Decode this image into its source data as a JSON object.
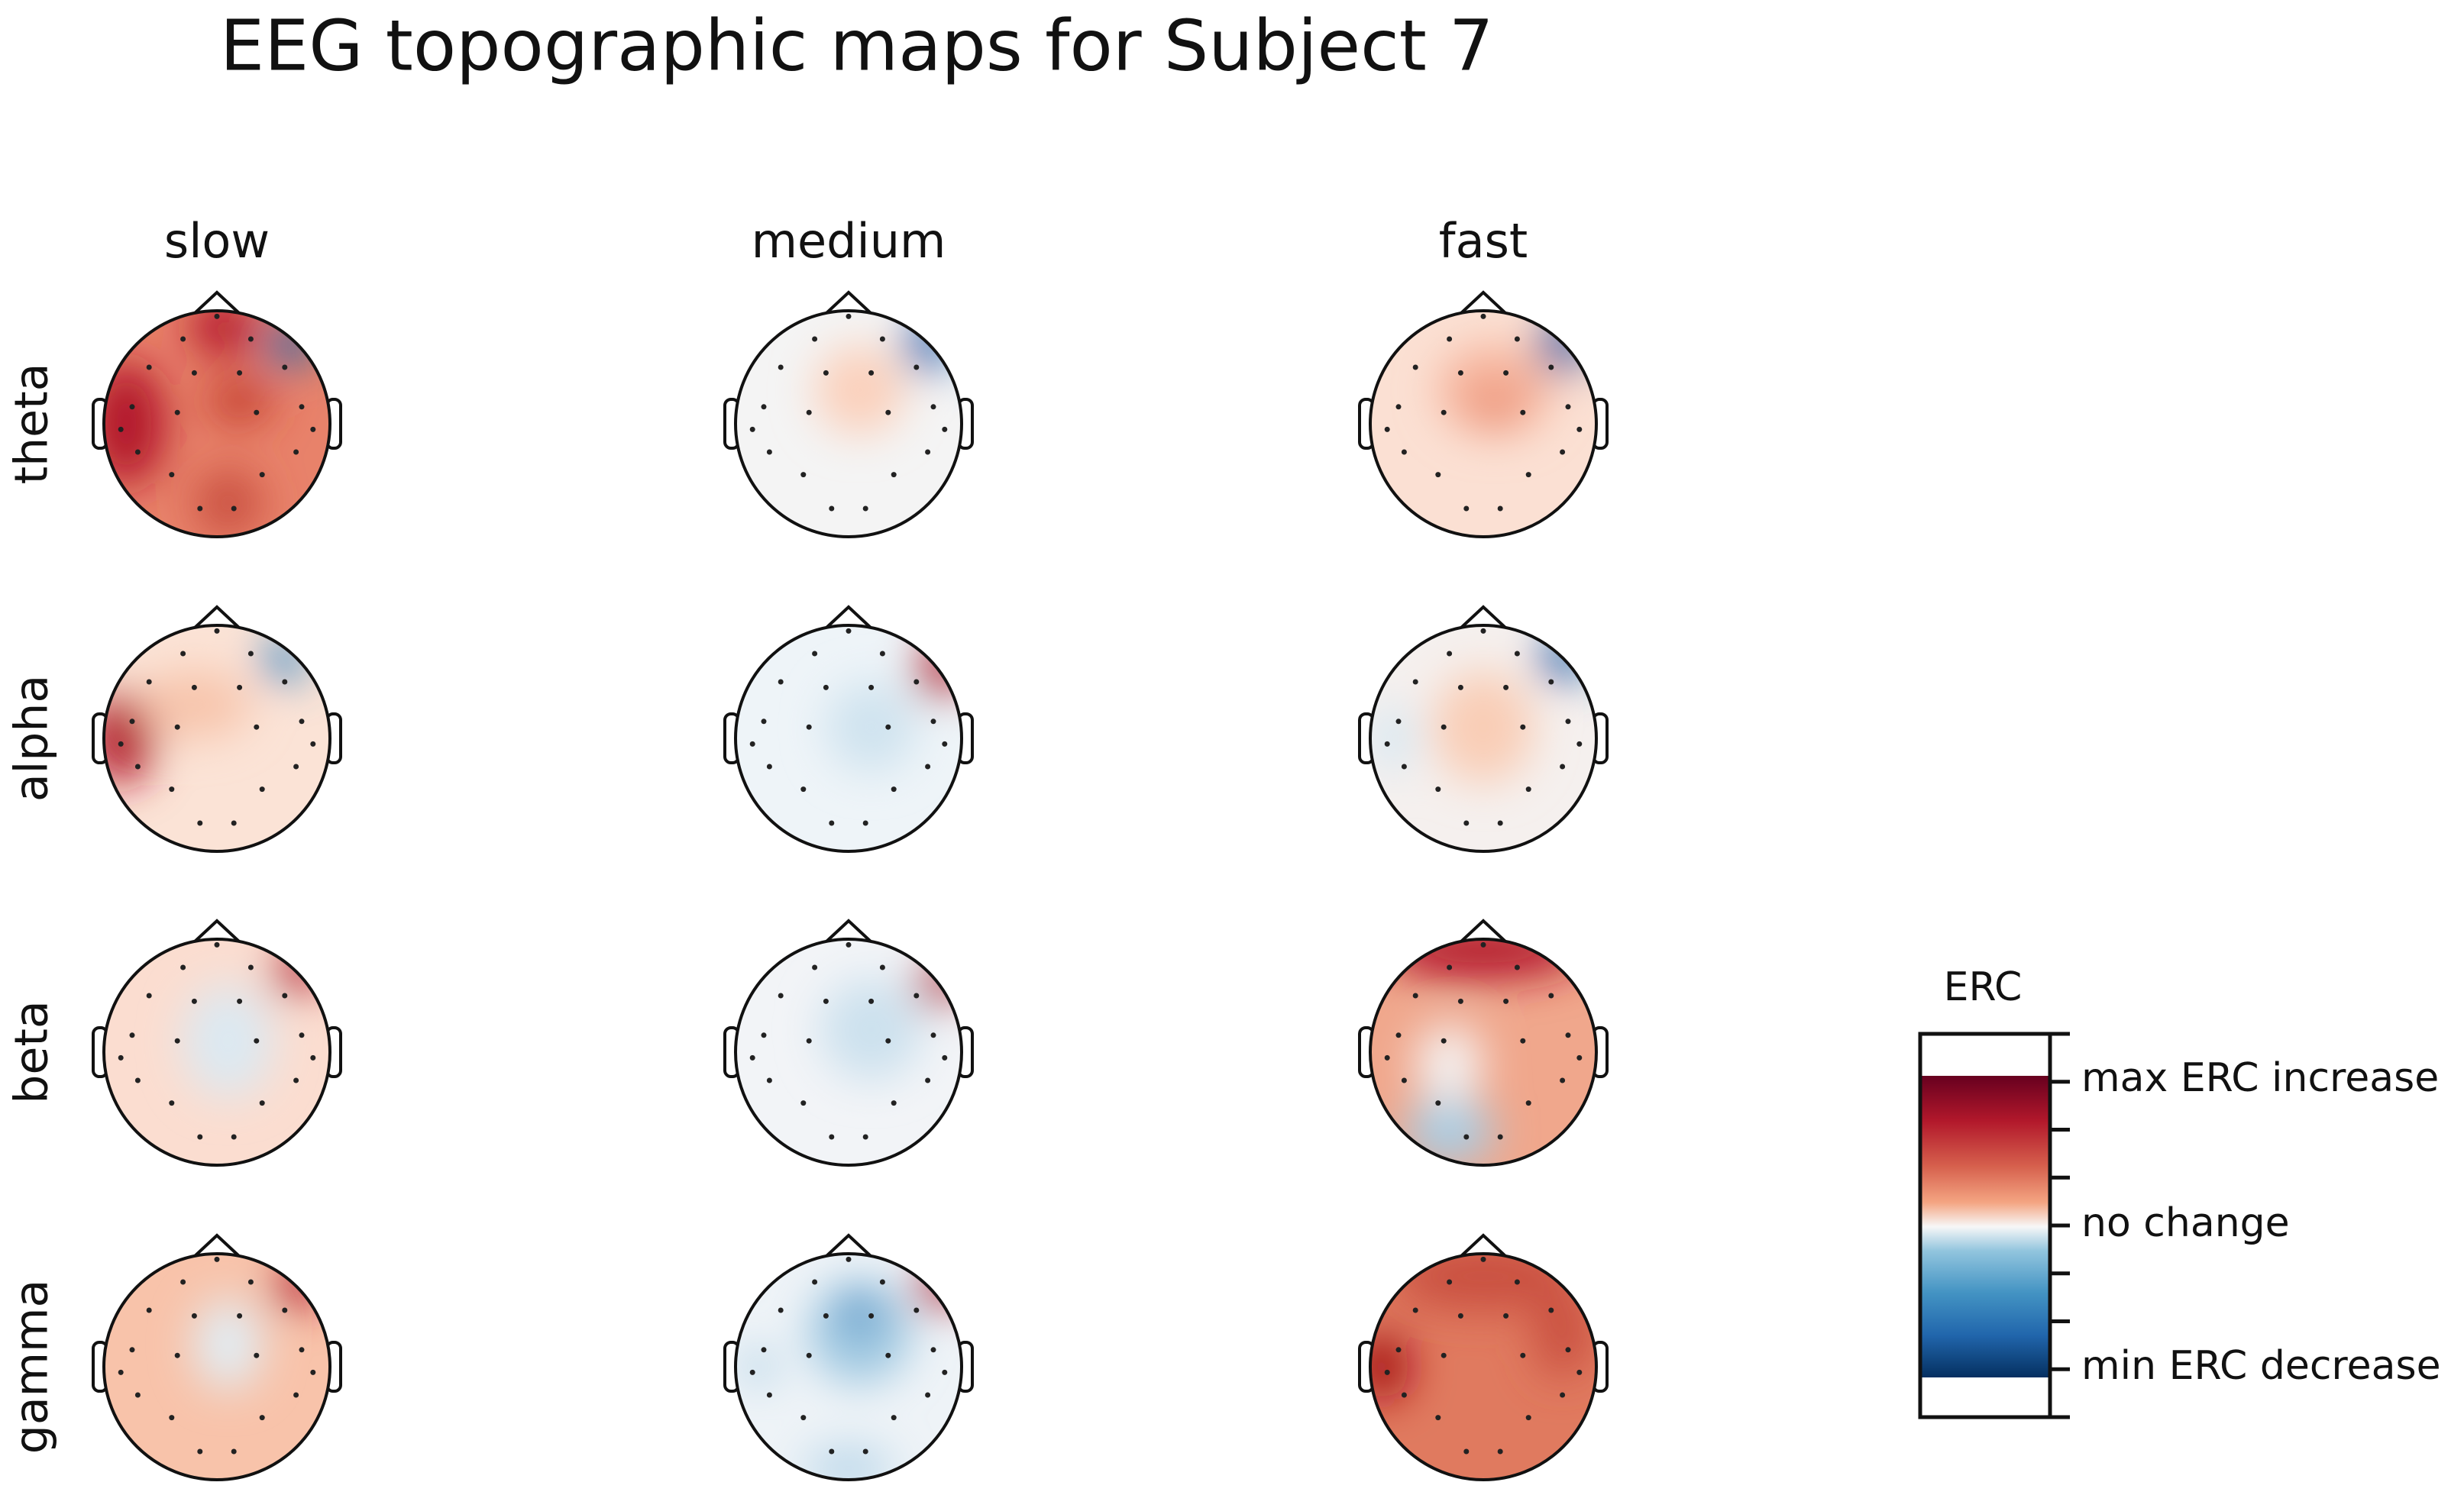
{
  "title": "EEG topographic maps for Subject 7",
  "columns": [
    "slow",
    "medium",
    "fast"
  ],
  "rows": [
    "theta",
    "alpha",
    "beta",
    "gamma"
  ],
  "colorbar": {
    "label": "ERC",
    "ticks": [
      "max ERC increase",
      "no change",
      "min ERC decrease"
    ]
  }
}
